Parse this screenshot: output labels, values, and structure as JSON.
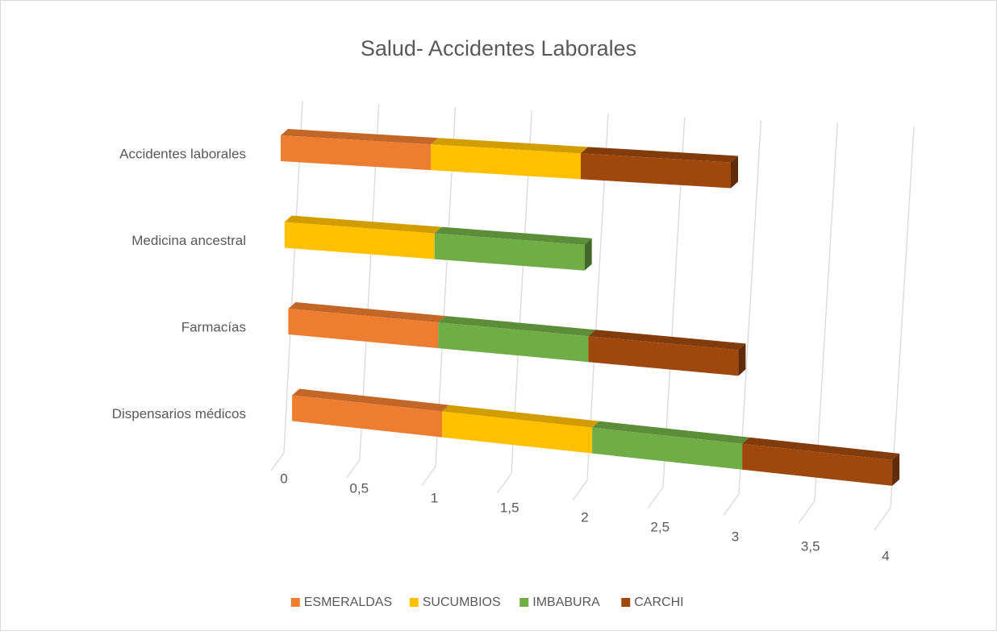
{
  "chart_data": {
    "type": "bar3d_stacked_horizontal",
    "title": "Salud- Accidentes Laborales",
    "categories": [
      "Dispensarios médicos",
      "Farmacías",
      "Medicina ancestral",
      "Accidentes laborales"
    ],
    "series": [
      {
        "name": "ESMERALDAS",
        "color": "#ed7d31",
        "values": [
          1,
          1,
          0,
          1
        ]
      },
      {
        "name": "SUCUMBIOS",
        "color": "#ffc000",
        "values": [
          1,
          0,
          1,
          1
        ]
      },
      {
        "name": "IMBABURA",
        "color": "#70ad47",
        "values": [
          1,
          1,
          1,
          0
        ]
      },
      {
        "name": "CARCHI",
        "color": "#9e480e",
        "values": [
          1,
          1,
          0,
          1
        ]
      }
    ],
    "xlim": [
      0,
      4
    ],
    "xticks": [
      0,
      {
        "value": 0.5,
        "label": "0,5"
      },
      1,
      {
        "value": 1.5,
        "label": "1,5"
      },
      2,
      {
        "value": 2.5,
        "label": "2,5"
      },
      3,
      {
        "value": 3.5,
        "label": "3,5"
      },
      4
    ],
    "grid": true,
    "legend": "bottom"
  }
}
